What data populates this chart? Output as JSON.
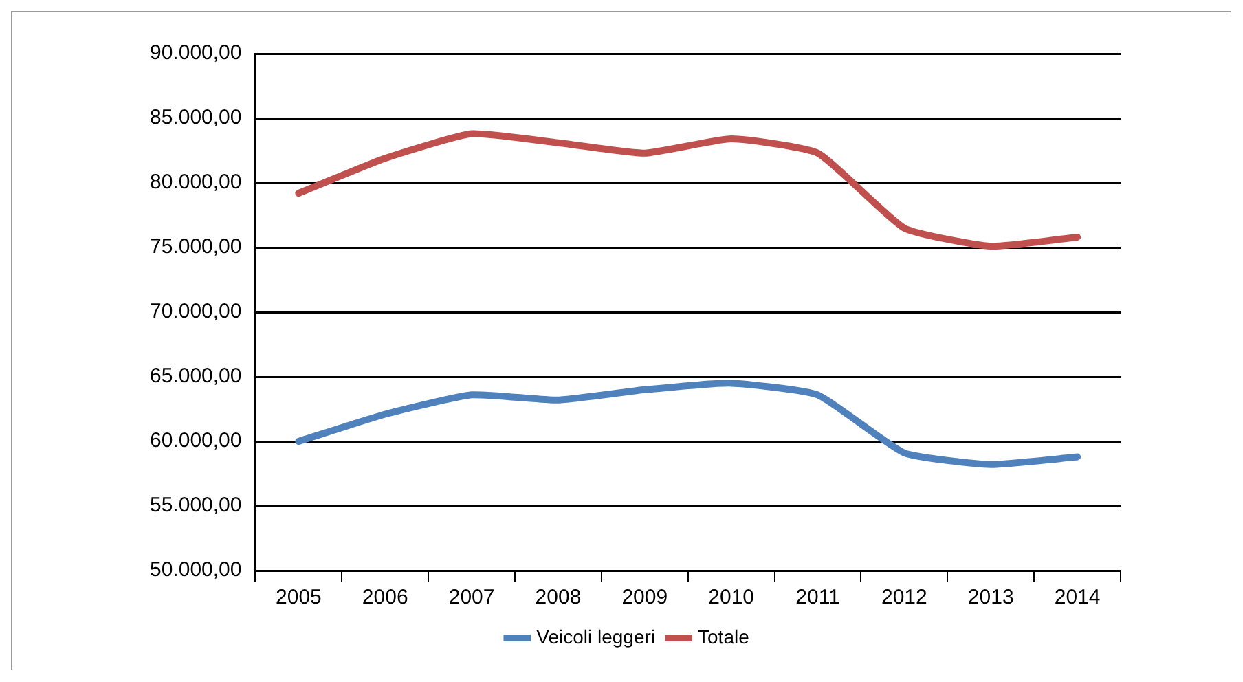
{
  "chart_data": {
    "type": "line",
    "categories": [
      "2005",
      "2006",
      "2007",
      "2008",
      "2009",
      "2010",
      "2011",
      "2012",
      "2013",
      "2014"
    ],
    "series": [
      {
        "name": "Veicoli leggeri",
        "color": "#4f81bd",
        "values": [
          60000,
          62100,
          63600,
          63200,
          64000,
          64500,
          63600,
          59100,
          58200,
          58800
        ]
      },
      {
        "name": "Totale",
        "color": "#c0504d",
        "values": [
          79200,
          81900,
          83800,
          83100,
          82300,
          83400,
          82300,
          76500,
          75100,
          75800
        ]
      }
    ],
    "ylim": [
      50000,
      90000
    ],
    "yticks": [
      {
        "value": 50000,
        "label": "50.000,00"
      },
      {
        "value": 55000,
        "label": "55.000,00"
      },
      {
        "value": 60000,
        "label": "60.000,00"
      },
      {
        "value": 65000,
        "label": "65.000,00"
      },
      {
        "value": 70000,
        "label": "70.000,00"
      },
      {
        "value": 75000,
        "label": "75.000,00"
      },
      {
        "value": 80000,
        "label": "80.000,00"
      },
      {
        "value": 85000,
        "label": "85.000,00"
      },
      {
        "value": 90000,
        "label": "90.000,00"
      }
    ],
    "grid": "y",
    "legend": "bottom",
    "marker": "none",
    "line_style": "solid"
  }
}
